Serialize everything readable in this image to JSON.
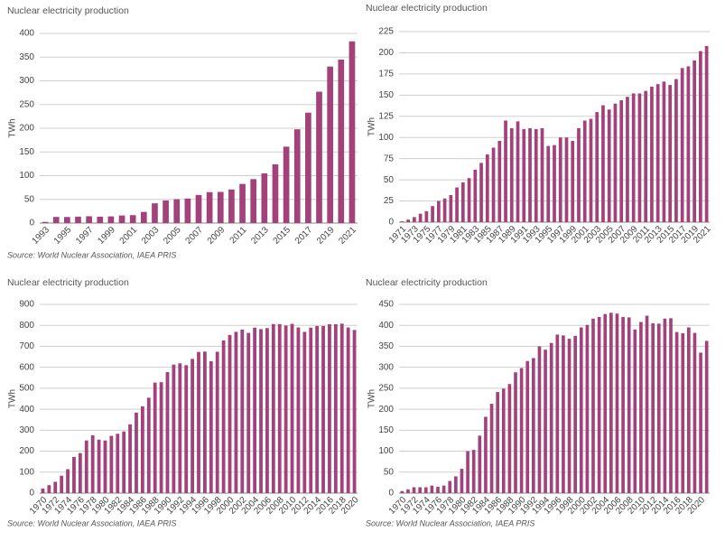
{
  "chart_data": [
    {
      "type": "bar",
      "title": "Nuclear electricity production",
      "ylabel": "TWh",
      "source": "Source: World Nuclear Association, IAEA PRIS",
      "color": "#a2417a",
      "categories": [
        "1993",
        null,
        "1995",
        null,
        "1997",
        null,
        "1999",
        null,
        "2001",
        null,
        "2003",
        null,
        "2005",
        null,
        "2007",
        null,
        "2009",
        null,
        "2011",
        null,
        "2013",
        null,
        "2015",
        null,
        "2017",
        null,
        "2019",
        null,
        "2021"
      ],
      "values": [
        2.5,
        13,
        12.8,
        13.6,
        14.4,
        13.5,
        14.1,
        16,
        16.7,
        23.5,
        41.7,
        47.8,
        50.3,
        51.8,
        59.3,
        65.3,
        65.7,
        70.9,
        82.6,
        92.7,
        104.8,
        123.8,
        161.2,
        197.8,
        232.9,
        277.1,
        330.1,
        344.7,
        383.2
      ],
      "ylim": [
        0,
        400
      ],
      "yticks": [
        0,
        50,
        100,
        150,
        200,
        250,
        300,
        350,
        400
      ],
      "grid": true
    },
    {
      "type": "bar",
      "title": "Nuclear electricity production",
      "ylabel": "TWh",
      "color": "#a2417a",
      "categories": [
        "1971",
        null,
        "1973",
        null,
        "1975",
        null,
        "1977",
        null,
        "1979",
        null,
        "1981",
        null,
        "1983",
        null,
        "1985",
        null,
        "1987",
        null,
        "1989",
        null,
        "1991",
        null,
        "1993",
        null,
        "1995",
        null,
        "1997",
        null,
        "1999",
        null,
        "2001",
        null,
        "2003",
        null,
        "2005",
        null,
        "2007",
        null,
        "2009",
        null,
        "2011",
        null,
        "2013",
        null,
        "2015",
        null,
        "2017",
        null,
        "2019",
        null,
        "2021"
      ],
      "values": [
        1,
        3,
        6,
        10,
        13,
        19,
        25,
        28,
        32,
        41,
        47,
        52,
        62,
        70,
        80,
        88,
        96,
        120,
        111,
        119,
        110,
        111,
        110,
        111,
        90,
        91,
        100,
        100,
        96,
        111,
        120,
        122,
        130,
        138,
        133,
        140,
        144,
        148,
        152,
        152,
        155,
        160,
        163,
        166,
        162,
        169,
        182,
        184,
        191,
        202,
        208
      ],
      "ylim": [
        0,
        225
      ],
      "yticks": [
        0,
        25,
        50,
        75,
        100,
        125,
        150,
        175,
        200,
        225
      ],
      "grid": true
    },
    {
      "type": "bar",
      "title": "Nuclear electricity production",
      "ylabel": "TWh",
      "source": "Source: World Nuclear Association, IAEA PRIS",
      "color": "#a2417a",
      "categories": [
        "1970",
        null,
        "1972",
        null,
        "1974",
        null,
        "1976",
        null,
        "1978",
        null,
        "1980",
        null,
        "1982",
        null,
        "1984",
        null,
        "1986",
        null,
        "1988",
        null,
        "1990",
        null,
        "1992",
        null,
        "1994",
        null,
        "1996",
        null,
        "1998",
        null,
        "2000",
        null,
        "2002",
        null,
        "2004",
        null,
        "2006",
        null,
        "2008",
        null,
        "2010",
        null,
        "2012",
        null,
        "2014",
        null,
        "2016",
        null,
        "2018",
        null,
        "2020"
      ],
      "values": [
        22,
        38,
        54,
        83,
        114,
        173,
        191,
        251,
        276,
        255,
        251,
        273,
        283,
        294,
        328,
        384,
        414,
        455,
        527,
        529,
        577,
        613,
        619,
        610,
        640,
        673,
        675,
        629,
        674,
        728,
        754,
        769,
        780,
        764,
        789,
        782,
        787,
        806,
        806,
        799,
        807,
        790,
        769,
        789,
        797,
        797,
        805,
        805,
        808,
        790,
        778
      ],
      "ylim": [
        0,
        900
      ],
      "yticks": [
        0,
        100,
        200,
        300,
        400,
        500,
        600,
        700,
        800,
        900
      ],
      "grid": true
    },
    {
      "type": "bar",
      "title": "Nuclear electricity production",
      "ylabel": "TWh",
      "source": "Source: World Nuclear Association, IAEA PRIS",
      "color": "#a2417a",
      "categories": [
        "1970",
        null,
        "1972",
        null,
        "1974",
        null,
        "1976",
        null,
        "1978",
        null,
        "1980",
        null,
        "1982",
        null,
        "1984",
        null,
        "1986",
        null,
        "1988",
        null,
        "1990",
        null,
        "1992",
        null,
        "1994",
        null,
        "1996",
        null,
        "1998",
        null,
        "2000",
        null,
        "2002",
        null,
        "2004",
        null,
        "2006",
        null,
        "2008",
        null,
        "2010",
        null,
        "2012",
        null,
        "2014",
        null,
        "2016",
        null,
        "2018",
        null,
        "2020",
        null
      ],
      "values": [
        5,
        9,
        14,
        14,
        14,
        18,
        15,
        18,
        29,
        40,
        58,
        100,
        103,
        137,
        182,
        213,
        241,
        249,
        260,
        288,
        298,
        315,
        322,
        350,
        342,
        358,
        378,
        376,
        368,
        375,
        395,
        401,
        416,
        420,
        427,
        430,
        428,
        420,
        419,
        390,
        408,
        423,
        405,
        404,
        416,
        417,
        384,
        381,
        395,
        382,
        335,
        363
      ],
      "ylim": [
        0,
        450
      ],
      "yticks": [
        0,
        50,
        100,
        150,
        200,
        250,
        300,
        350,
        400,
        450
      ],
      "grid": true
    }
  ]
}
